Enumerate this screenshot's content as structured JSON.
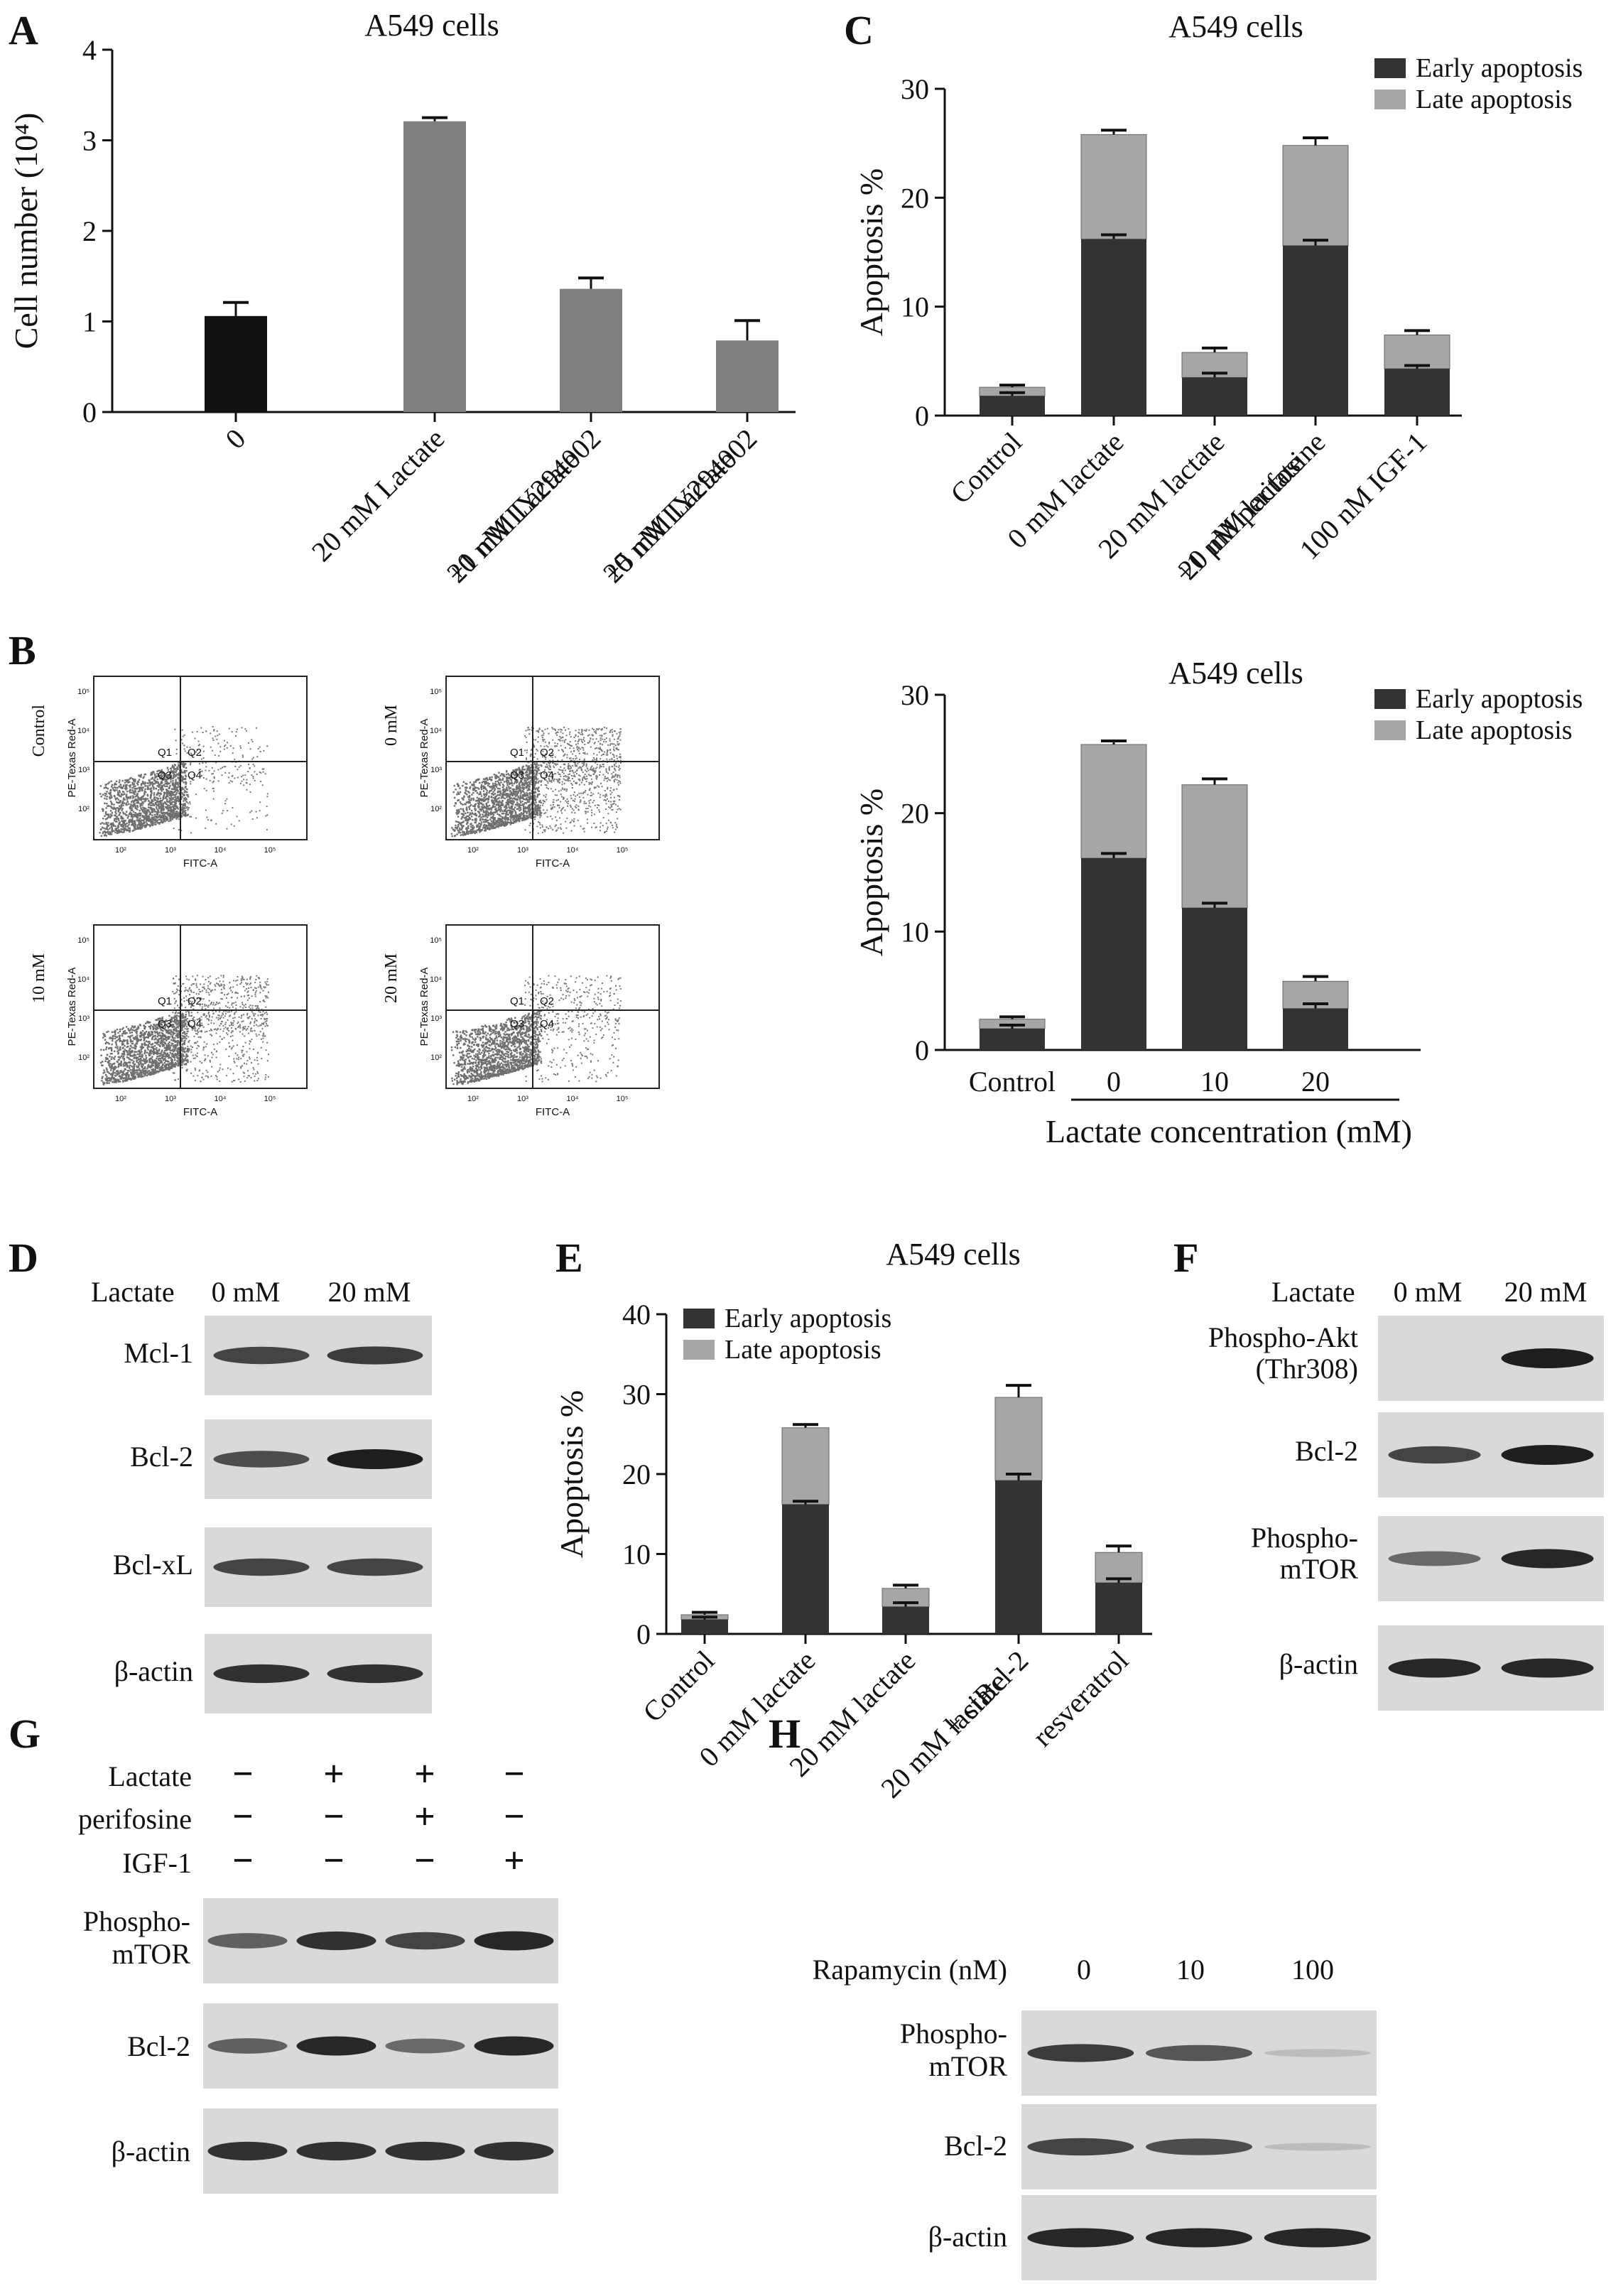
{
  "figure": {
    "panel_letters": [
      "A",
      "B",
      "C",
      "D",
      "E",
      "F",
      "G",
      "H"
    ],
    "colors": {
      "black_bar": "#111111",
      "gray_bar": "#7f7f7f",
      "early": "#333333",
      "late": "#a6a6a6",
      "blot_bg": "#d9d9d9",
      "band": "#1e1e1e",
      "flow_dot": "#6e6e6e"
    }
  },
  "chart_data": [
    {
      "panel": "A",
      "type": "bar",
      "title": "A549 cells",
      "ylabel": "Cell number (10⁴)",
      "xlabel": "",
      "ylim": [
        0,
        4
      ],
      "yticks": [
        0,
        1,
        2,
        3,
        4
      ],
      "categories": [
        [
          "0"
        ],
        [
          "20 mM Lactate"
        ],
        [
          "20 mM Lactate",
          "+1 nM LY294002"
        ],
        [
          "20 mM Lactate",
          "+5 nM LY294002"
        ]
      ],
      "values": [
        1.06,
        3.21,
        1.36,
        0.79
      ],
      "errors": [
        0.15,
        0.04,
        0.12,
        0.22
      ],
      "bar_colors": [
        "black_bar",
        "gray_bar",
        "gray_bar",
        "gray_bar"
      ]
    },
    {
      "panel": "C",
      "type": "bar",
      "stacked": true,
      "title": "A549 cells",
      "ylabel": "Apoptosis %",
      "xlabel": "",
      "ylim": [
        0,
        30
      ],
      "yticks": [
        0,
        10,
        20,
        30
      ],
      "legend": [
        "Early apoptosis",
        "Late apoptosis"
      ],
      "legend_position": "top-right",
      "categories": [
        [
          "Control"
        ],
        [
          "0 mM lactate"
        ],
        [
          "20 mM lactate"
        ],
        [
          "20 mM lactate",
          "+1 μM perifosine"
        ],
        [
          "100 nM IGF-1"
        ]
      ],
      "series": [
        {
          "name": "Early apoptosis",
          "values": [
            1.8,
            16.2,
            3.5,
            15.6,
            4.3
          ],
          "errors": [
            0.3,
            0.4,
            0.4,
            0.5,
            0.3
          ]
        },
        {
          "name": "Late apoptosis",
          "total": [
            2.6,
            25.8,
            5.8,
            24.8,
            7.4
          ],
          "errors": [
            0.2,
            0.4,
            0.4,
            0.7,
            0.4
          ]
        }
      ]
    },
    {
      "panel": "C2",
      "type": "bar",
      "stacked": true,
      "title": "A549 cells",
      "ylabel": "Apoptosis %",
      "xlabel": "Lactate concentration (mM)",
      "ylim": [
        0,
        30
      ],
      "yticks": [
        0,
        10,
        20,
        30
      ],
      "legend": [
        "Early apoptosis",
        "Late apoptosis"
      ],
      "legend_position": "top-right",
      "categories": [
        [
          "Control"
        ],
        [
          "0"
        ],
        [
          "10"
        ],
        [
          "20"
        ]
      ],
      "series": [
        {
          "name": "Early apoptosis",
          "values": [
            1.8,
            16.2,
            12.0,
            3.5
          ],
          "errors": [
            0.3,
            0.4,
            0.4,
            0.4
          ]
        },
        {
          "name": "Late apoptosis",
          "total": [
            2.6,
            25.8,
            22.4,
            5.8
          ],
          "errors": [
            0.2,
            0.3,
            0.5,
            0.4
          ]
        }
      ]
    },
    {
      "panel": "E",
      "type": "bar",
      "stacked": true,
      "title": "A549 cells",
      "ylabel": "Apoptosis %",
      "xlabel": "",
      "ylim": [
        0,
        40
      ],
      "yticks": [
        0,
        10,
        20,
        30,
        40
      ],
      "legend": [
        "Early apoptosis",
        "Late apoptosis"
      ],
      "legend_position": "top-left",
      "categories": [
        [
          "Control"
        ],
        [
          "0 mM lactate"
        ],
        [
          "20 mM lactate"
        ],
        [
          "20 mM lactate",
          "+ siBcl-2"
        ],
        [
          "resveratrol"
        ]
      ],
      "series": [
        {
          "name": "Early apoptosis",
          "values": [
            1.8,
            16.2,
            3.4,
            19.2,
            6.4
          ],
          "errors": [
            0.3,
            0.4,
            0.5,
            0.8,
            0.5
          ]
        },
        {
          "name": "Late apoptosis",
          "total": [
            2.4,
            25.8,
            5.7,
            29.6,
            10.2
          ],
          "errors": [
            0.3,
            0.4,
            0.4,
            1.5,
            0.8
          ]
        }
      ]
    }
  ],
  "flow": {
    "x_axis": "FITC-A",
    "y_axis": "PE-Texas Red-A",
    "quadrants": [
      "Q1",
      "Q2",
      "Q3",
      "Q4"
    ],
    "tick_labels": [
      "10²",
      "10³",
      "10⁴",
      "10⁵"
    ],
    "plots": [
      {
        "label": "Control",
        "late_density": 0.15
      },
      {
        "label": "0 mM",
        "late_density": 1.0
      },
      {
        "label": "10 mM",
        "late_density": 0.75
      },
      {
        "label": "20 mM",
        "late_density": 0.35
      }
    ]
  },
  "blot_D": {
    "header": [
      "Lactate",
      "0 mM",
      "20 mM"
    ],
    "rows": [
      {
        "label": "Mcl-1",
        "bands": [
          0.8,
          0.85
        ]
      },
      {
        "label": "Bcl-2",
        "bands": [
          0.75,
          1.0
        ]
      },
      {
        "label": "Bcl-xL",
        "bands": [
          0.8,
          0.8
        ]
      },
      {
        "label": "β-actin",
        "bands": [
          0.9,
          0.9
        ]
      }
    ]
  },
  "blot_F": {
    "header": [
      "Lactate",
      "0 mM",
      "20 mM"
    ],
    "rows": [
      {
        "label": [
          "Phospho-Akt",
          "(Thr308)"
        ],
        "bands": [
          0.0,
          1.0
        ]
      },
      {
        "label": [
          "Bcl-2"
        ],
        "bands": [
          0.8,
          1.0
        ]
      },
      {
        "label": [
          "Phospho-",
          "mTOR"
        ],
        "bands": [
          0.6,
          0.95
        ]
      },
      {
        "label": [
          "β-actin"
        ],
        "bands": [
          0.95,
          0.95
        ]
      }
    ]
  },
  "blot_G": {
    "conditions": [
      {
        "label": "Lactate",
        "signs": [
          "−",
          "+",
          "+",
          "−"
        ]
      },
      {
        "label": "perifosine",
        "signs": [
          "−",
          "−",
          "+",
          "−"
        ]
      },
      {
        "label": "IGF-1",
        "signs": [
          "−",
          "−",
          "−",
          "+"
        ]
      }
    ],
    "rows": [
      {
        "label": [
          "Phospho-",
          "mTOR"
        ],
        "bands": [
          0.65,
          0.9,
          0.8,
          0.95
        ]
      },
      {
        "label": [
          "Bcl-2"
        ],
        "bands": [
          0.65,
          0.95,
          0.6,
          0.95
        ]
      },
      {
        "label": [
          "β-actin"
        ],
        "bands": [
          0.9,
          0.9,
          0.9,
          0.9
        ]
      }
    ]
  },
  "blot_H": {
    "header": [
      "Rapamycin (nM)",
      "0",
      "10",
      "100"
    ],
    "rows": [
      {
        "label": [
          "Phospho-",
          "mTOR"
        ],
        "bands": [
          0.85,
          0.7,
          0.08
        ]
      },
      {
        "label": [
          "Bcl-2"
        ],
        "bands": [
          0.8,
          0.75,
          0.06
        ]
      },
      {
        "label": [
          "β-actin"
        ],
        "bands": [
          0.95,
          0.95,
          0.95
        ]
      }
    ]
  }
}
